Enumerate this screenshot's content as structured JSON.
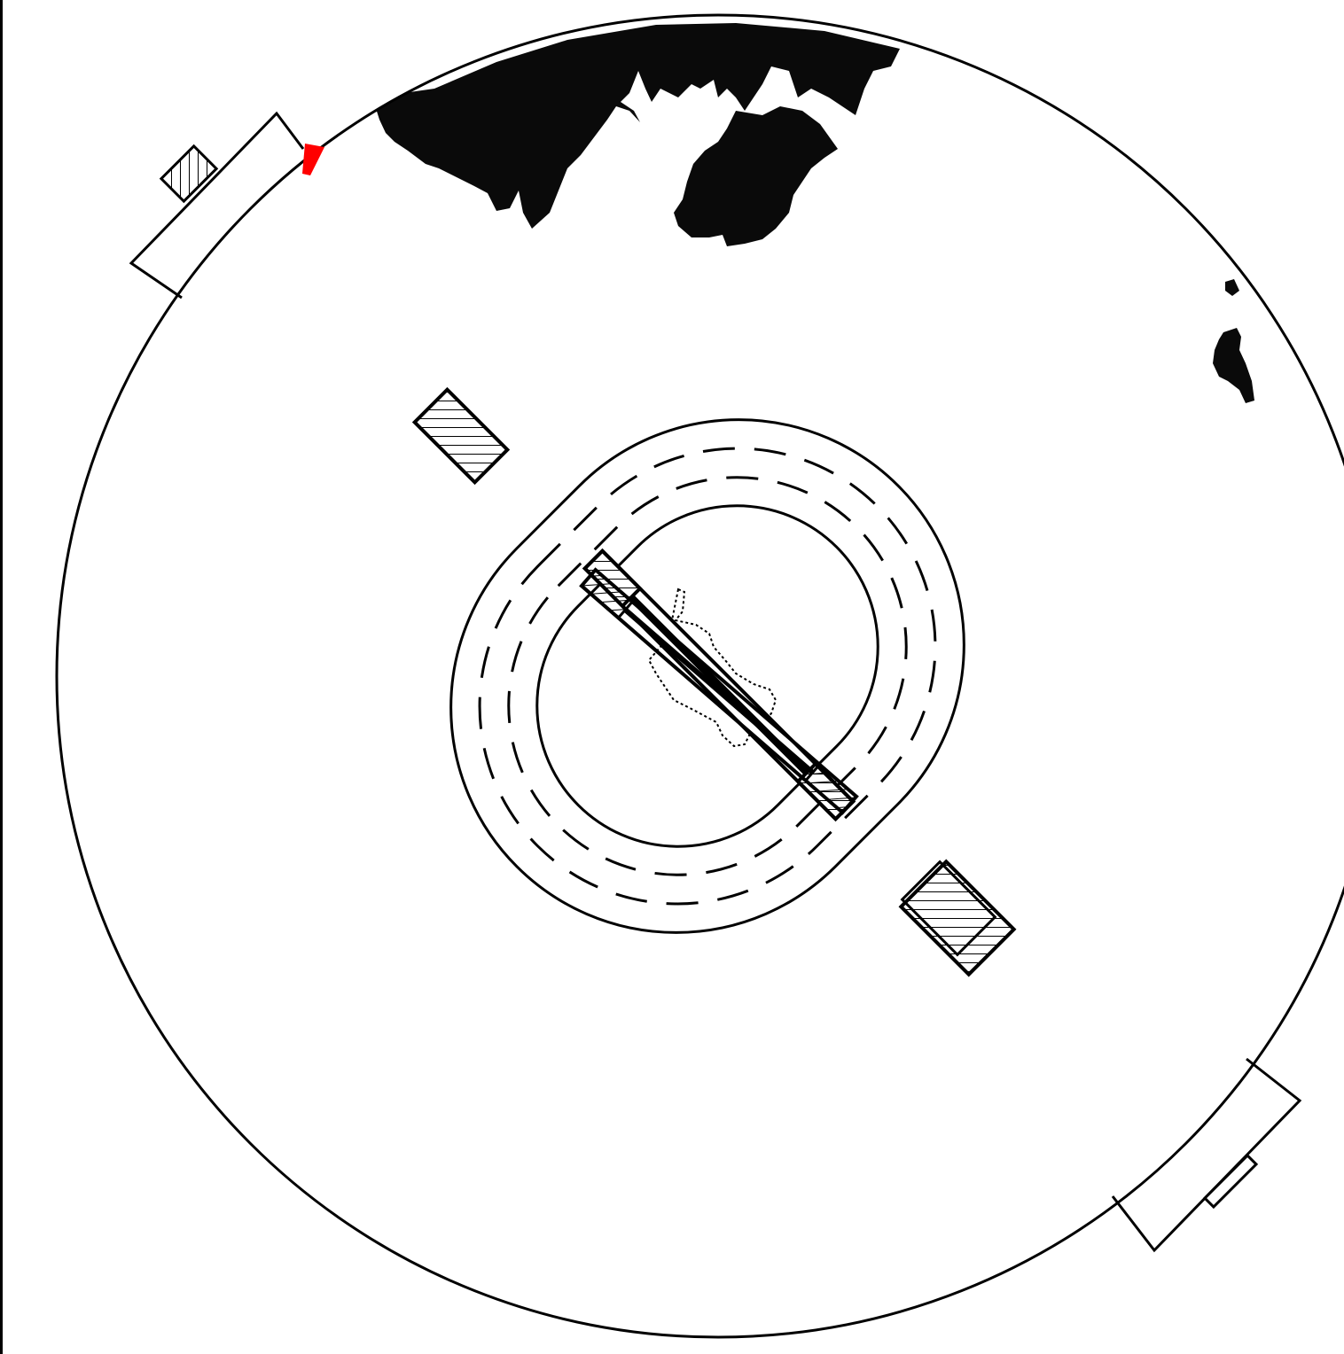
{
  "diagram": {
    "colors": {
      "line": "#000000",
      "fill": "#0a0a0a",
      "accent": "#ff0000",
      "background": "#ffffff"
    },
    "elements": [
      "outer-circle",
      "dark-landmass",
      "oval-track",
      "central-pitch-strips",
      "gate-structures",
      "red-marker"
    ]
  }
}
